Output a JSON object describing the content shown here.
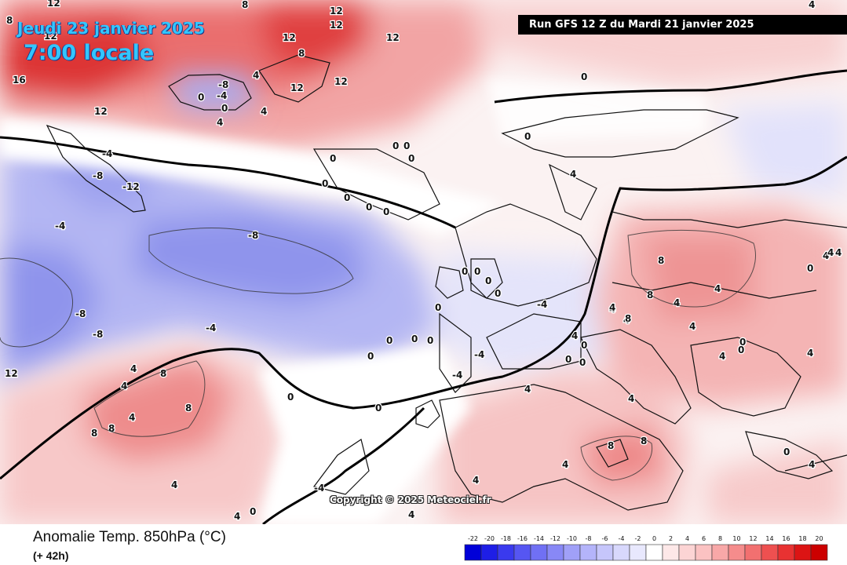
{
  "header": {
    "date_label": "Jeudi 23 janvier 2025",
    "time_label": "7:00 locale",
    "run_label": "Run GFS 12 Z du Mardi 21 janvier 2025"
  },
  "footer": {
    "parameter": "Anomalie Temp. 850hPa (°C)",
    "offset": "(+ 42h)",
    "copyright": "Copyright © 2025 Meteociel.fr"
  },
  "legend": {
    "ticks": [
      "-22",
      "-20",
      "-18",
      "-16",
      "-14",
      "-12",
      "-10",
      "-8",
      "-6",
      "-4",
      "-2",
      "0",
      "2",
      "4",
      "6",
      "8",
      "10",
      "12",
      "14",
      "16",
      "18",
      "20"
    ],
    "colors": [
      "#0000d8",
      "#1e1ee6",
      "#3a3aee",
      "#5656f2",
      "#7070f4",
      "#8888f6",
      "#a0a0f8",
      "#b4b4fa",
      "#c6c6fb",
      "#d8d8fc",
      "#e8e8fd",
      "#ffffff",
      "#fde8e8",
      "#fcd4d4",
      "#fbc2c2",
      "#f8a8a8",
      "#f58c8c",
      "#f27070",
      "#ee5050",
      "#e83232",
      "#dc1414",
      "#cc0000"
    ]
  },
  "map_labels": [
    {
      "v": "12"
    },
    {
      "v": "16"
    },
    {
      "v": "12"
    },
    {
      "v": "12"
    },
    {
      "v": "12"
    },
    {
      "v": "12"
    },
    {
      "v": "8"
    },
    {
      "v": "8"
    },
    {
      "v": "8"
    },
    {
      "v": "4"
    },
    {
      "v": "12"
    },
    {
      "v": "12"
    },
    {
      "v": "12"
    },
    {
      "v": "-8"
    },
    {
      "v": "-4"
    },
    {
      "v": "0"
    },
    {
      "v": "0"
    },
    {
      "v": "4"
    },
    {
      "v": "4"
    },
    {
      "v": "12"
    },
    {
      "v": "0"
    },
    {
      "v": "0"
    },
    {
      "v": "0"
    },
    {
      "v": "-4"
    },
    {
      "v": "-8"
    },
    {
      "v": "-12"
    },
    {
      "v": "0"
    },
    {
      "v": "0"
    },
    {
      "v": "0"
    },
    {
      "v": "0"
    },
    {
      "v": "0"
    },
    {
      "v": "-4"
    },
    {
      "v": "-8"
    },
    {
      "v": "-8"
    },
    {
      "v": "-8"
    },
    {
      "v": "-4"
    },
    {
      "v": "12"
    },
    {
      "v": "4"
    },
    {
      "v": "8"
    },
    {
      "v": "8"
    },
    {
      "v": "8"
    },
    {
      "v": "8"
    },
    {
      "v": "4"
    },
    {
      "v": "0"
    },
    {
      "v": "0"
    },
    {
      "v": "0"
    },
    {
      "v": "0"
    },
    {
      "v": "0"
    },
    {
      "v": "0"
    },
    {
      "v": "0"
    },
    {
      "v": "0"
    },
    {
      "v": "0"
    },
    {
      "v": "0"
    },
    {
      "v": "-4"
    },
    {
      "v": "-4"
    },
    {
      "v": "-4"
    },
    {
      "v": "4"
    },
    {
      "v": "0"
    },
    {
      "v": "0"
    },
    {
      "v": "4"
    },
    {
      "v": "0"
    },
    {
      "v": "0"
    },
    {
      "v": "0"
    },
    {
      "v": "0"
    },
    {
      "v": "4"
    },
    {
      "v": "4"
    },
    {
      "v": "8"
    },
    {
      "v": "8"
    },
    {
      "v": "4"
    },
    {
      "v": "4"
    },
    {
      "v": "4"
    },
    {
      "v": "4"
    },
    {
      "v": "8"
    },
    {
      "v": "4"
    },
    {
      "v": "4"
    },
    {
      "v": "4"
    },
    {
      "v": "4"
    },
    {
      "v": "4"
    },
    {
      "v": "4"
    },
    {
      "v": "8"
    },
    {
      "v": "8"
    },
    {
      "v": "4"
    },
    {
      "v": "4"
    },
    {
      "v": "4"
    },
    {
      "v": "0"
    },
    {
      "v": "0"
    },
    {
      "v": "0"
    },
    {
      "v": "4"
    },
    {
      "v": "0"
    },
    {
      "v": "4"
    },
    {
      "v": "4"
    },
    {
      "v": "-4"
    },
    {
      "v": "4"
    },
    {
      "v": "4"
    },
    {
      "v": "0"
    },
    {
      "v": "4"
    }
  ]
}
